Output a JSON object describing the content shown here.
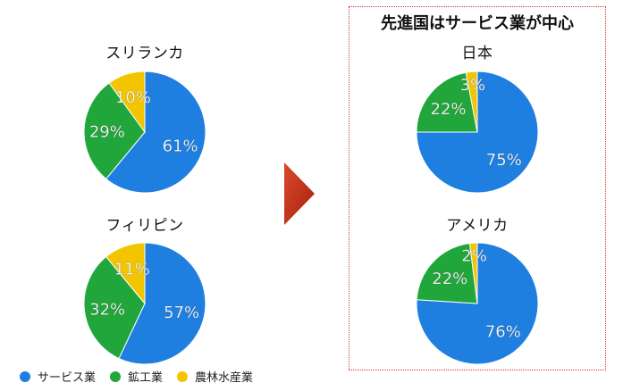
{
  "box_title": "先進国はサービス業が中心",
  "legend": [
    {
      "label": "サービス業",
      "color": "#1f7fe0"
    },
    {
      "label": "鉱工業",
      "color": "#20a63a"
    },
    {
      "label": "農林水産業",
      "color": "#f2c500"
    }
  ],
  "chart_data": [
    {
      "type": "pie",
      "title": "スリランカ",
      "slices": [
        {
          "label": "サービス業",
          "value": 61,
          "text": "61%"
        },
        {
          "label": "鉱工業",
          "value": 29,
          "text": "29%"
        },
        {
          "label": "農林水産業",
          "value": 10,
          "text": "10%"
        }
      ]
    },
    {
      "type": "pie",
      "title": "フィリピン",
      "slices": [
        {
          "label": "サービス業",
          "value": 57,
          "text": "57%"
        },
        {
          "label": "鉱工業",
          "value": 32,
          "text": "32%"
        },
        {
          "label": "農林水産業",
          "value": 11,
          "text": "11%"
        }
      ]
    },
    {
      "type": "pie",
      "title": "日本",
      "slices": [
        {
          "label": "サービス業",
          "value": 75,
          "text": "75%"
        },
        {
          "label": "鉱工業",
          "value": 22,
          "text": "22%"
        },
        {
          "label": "農林水産業",
          "value": 3,
          "text": "3%"
        }
      ]
    },
    {
      "type": "pie",
      "title": "アメリカ",
      "slices": [
        {
          "label": "サービス業",
          "value": 76,
          "text": "76%"
        },
        {
          "label": "鉱工業",
          "value": 22,
          "text": "22%"
        },
        {
          "label": "農林水産業",
          "value": 2,
          "text": "2%"
        }
      ]
    }
  ]
}
